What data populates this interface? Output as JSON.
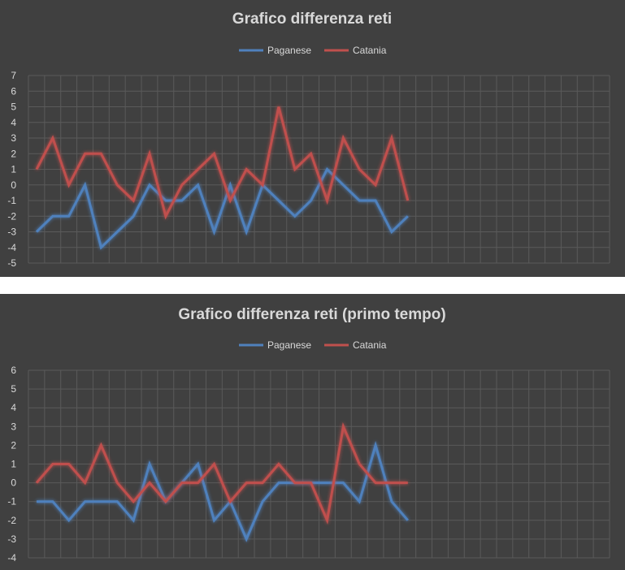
{
  "chart_data": [
    {
      "type": "line",
      "title": "Grafico differenza reti",
      "legend": "top",
      "grid": true,
      "xlabel": "",
      "ylabel": "",
      "ylim": [
        -5,
        7
      ],
      "yticks": [
        7,
        6,
        5,
        4,
        3,
        2,
        1,
        0,
        -1,
        -2,
        -3,
        -4,
        -5
      ],
      "num_categories": 36,
      "colors": {
        "Paganese": "#4f81bd",
        "Catania": "#c0504d"
      },
      "series": [
        {
          "name": "Paganese",
          "values": [
            -3,
            -2,
            -2,
            0,
            -4,
            -3,
            -2,
            0,
            -1,
            -1,
            0,
            -3,
            0,
            -3,
            0,
            -1,
            -2,
            -1,
            1,
            0,
            -1,
            -1,
            -3,
            -2
          ]
        },
        {
          "name": "Catania",
          "values": [
            1,
            3,
            0,
            2,
            2,
            0,
            -1,
            2,
            -2,
            0,
            1,
            2,
            -1,
            1,
            0,
            5,
            1,
            2,
            -1,
            3,
            1,
            0,
            3,
            -1
          ]
        }
      ]
    },
    {
      "type": "line",
      "title": "Grafico differenza reti (primo tempo)",
      "legend": "top",
      "grid": true,
      "xlabel": "",
      "ylabel": "",
      "ylim": [
        -4,
        6
      ],
      "yticks": [
        6,
        5,
        4,
        3,
        2,
        1,
        0,
        -1,
        -2,
        -3,
        -4
      ],
      "num_categories": 36,
      "colors": {
        "Paganese": "#4f81bd",
        "Catania": "#c0504d"
      },
      "series": [
        {
          "name": "Paganese",
          "values": [
            -1,
            -1,
            -2,
            -1,
            -1,
            -1,
            -2,
            1,
            -1,
            0,
            1,
            -2,
            -1,
            -3,
            -1,
            0,
            0,
            0,
            0,
            0,
            -1,
            2,
            -1,
            -2
          ]
        },
        {
          "name": "Catania",
          "values": [
            0,
            1,
            1,
            0,
            2,
            0,
            -1,
            0,
            -1,
            0,
            0,
            1,
            -1,
            0,
            0,
            1,
            0,
            0,
            -2,
            3,
            1,
            0,
            0,
            0
          ]
        }
      ]
    }
  ]
}
